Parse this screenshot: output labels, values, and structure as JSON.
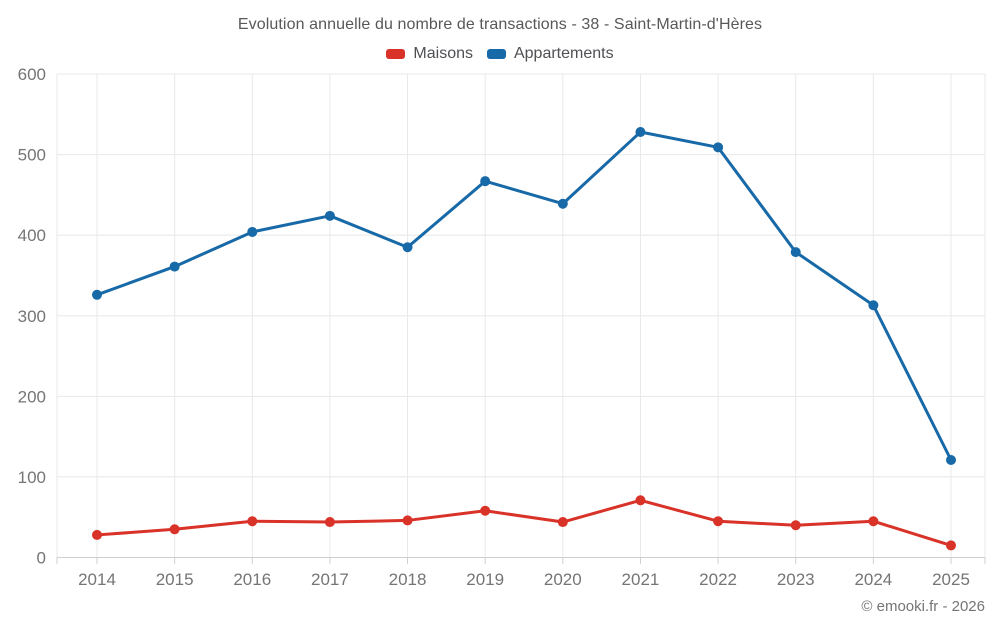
{
  "title": "Evolution annuelle du nombre de transactions - 38 - Saint-Martin-d'Hères",
  "footer": "© emooki.fr - 2026",
  "legend": [
    {
      "label": "Maisons",
      "color": "#d93228"
    },
    {
      "label": "Appartements",
      "color": "#1769a7"
    }
  ],
  "colors": {
    "grid": "#e8e8e8",
    "axis": "#cfcfcf",
    "tick_label": "#757575",
    "title_text": "#58585a"
  },
  "chart_data": {
    "type": "line",
    "title": "Evolution annuelle du nombre de transactions - 38 - Saint-Martin-d'Hères",
    "xlabel": "",
    "ylabel": "",
    "x": [
      2014,
      2015,
      2016,
      2017,
      2018,
      2019,
      2020,
      2021,
      2022,
      2023,
      2024,
      2025
    ],
    "series": [
      {
        "name": "Maisons",
        "color": "#d93228",
        "values": [
          28,
          35,
          45,
          44,
          46,
          58,
          44,
          71,
          45,
          40,
          45,
          15
        ]
      },
      {
        "name": "Appartements",
        "color": "#1769a7",
        "values": [
          326,
          361,
          404,
          424,
          385,
          467,
          439,
          528,
          509,
          379,
          313,
          121
        ]
      }
    ],
    "ylim": [
      0,
      600
    ],
    "yticks": [
      0,
      100,
      200,
      300,
      400,
      500,
      600
    ],
    "grid": true,
    "legend_position": "top-center",
    "marker": "circle"
  }
}
